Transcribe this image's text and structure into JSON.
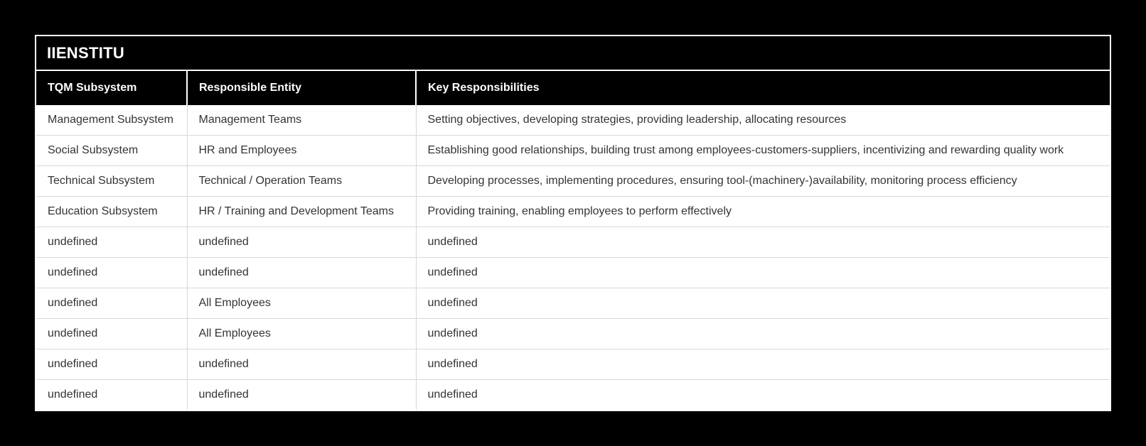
{
  "header": {
    "title": "IIENSTITU"
  },
  "table": {
    "columns": [
      "TQM Subsystem",
      "Responsible Entity",
      "Key Responsibilities"
    ],
    "rows": [
      [
        "Management Subsystem",
        "Management Teams",
        "Setting objectives, developing strategies, providing leadership, allocating resources"
      ],
      [
        "Social Subsystem",
        "HR and Employees",
        "Establishing good relationships, building trust among employees-customers-suppliers, incentivizing and rewarding quality work"
      ],
      [
        "Technical Subsystem",
        "Technical / Operation Teams",
        "Developing processes, implementing procedures, ensuring tool-(machinery-)availability, monitoring process efficiency"
      ],
      [
        "Education Subsystem",
        "HR / Training and Development Teams",
        "Providing training, enabling employees to perform effectively"
      ],
      [
        "undefined",
        "undefined",
        "undefined"
      ],
      [
        "undefined",
        "undefined",
        "undefined"
      ],
      [
        "undefined",
        "All Employees",
        "undefined"
      ],
      [
        "undefined",
        "All Employees",
        "undefined"
      ],
      [
        "undefined",
        "undefined",
        "undefined"
      ],
      [
        "undefined",
        "undefined",
        "undefined"
      ]
    ]
  },
  "colors": {
    "page_background": "#000000",
    "card_background": "#000000",
    "card_border": "#ffffff",
    "header_text": "#ffffff",
    "row_background": "#ffffff",
    "row_text": "#343434",
    "row_separator": "#d8d8d8"
  }
}
